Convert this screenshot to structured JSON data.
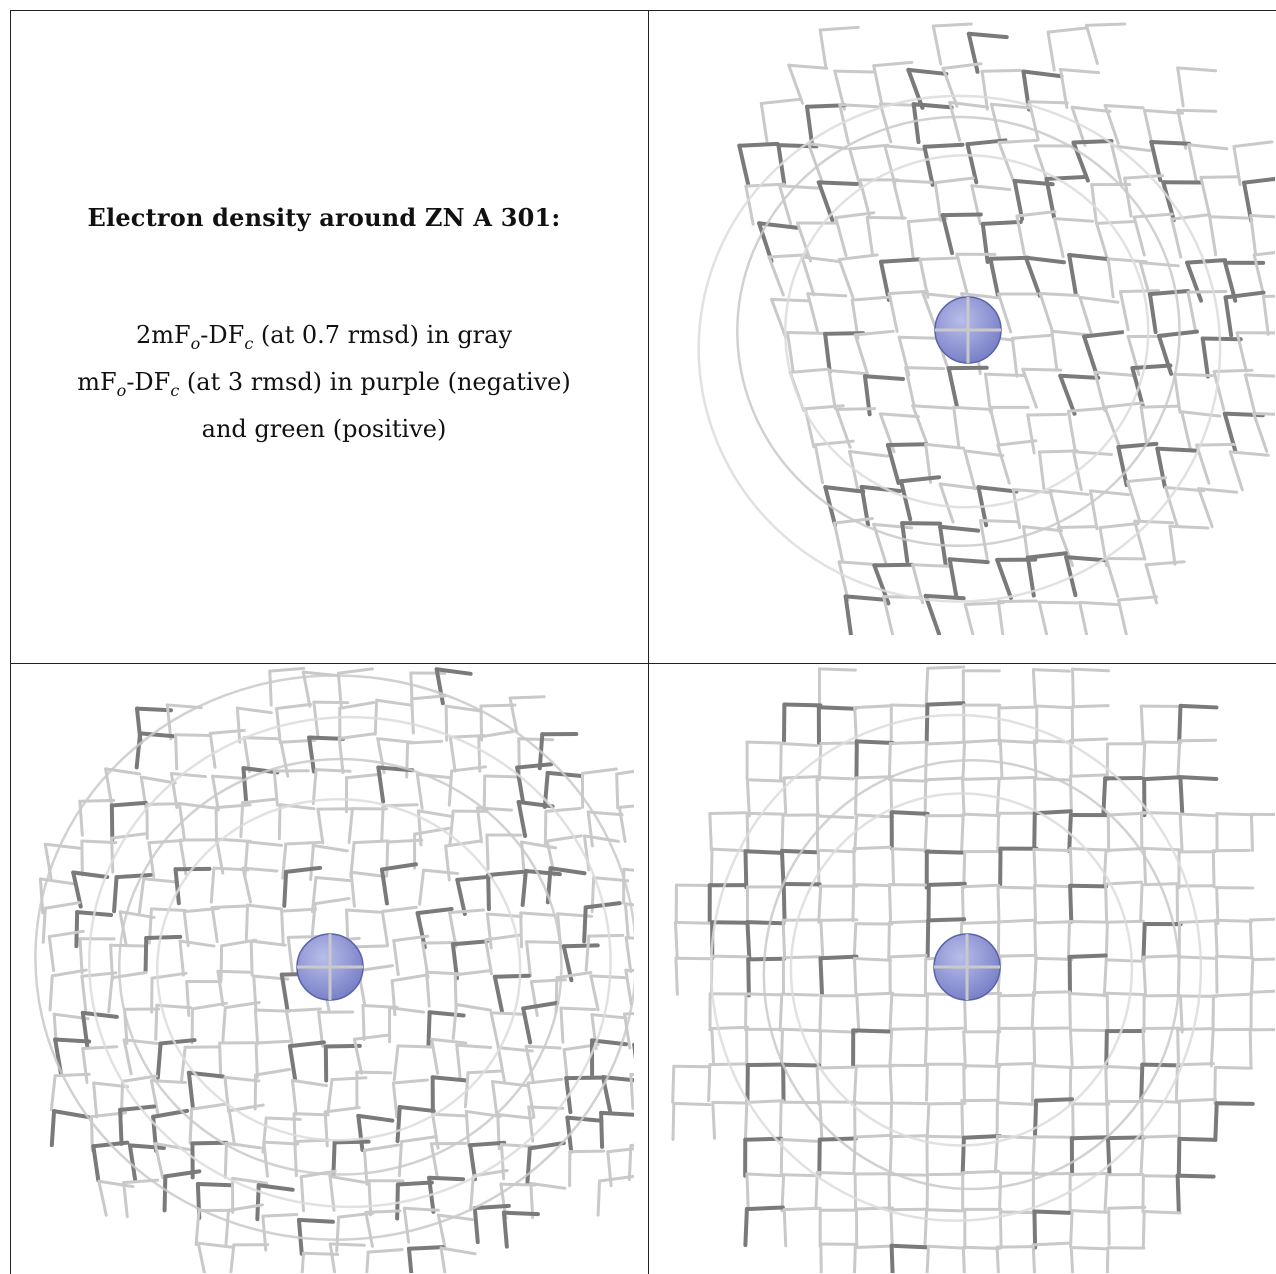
{
  "caption": {
    "title": "Electron density around ZN A 301:",
    "line1": {
      "main": "2mF",
      "sub1": "o",
      "mid": "-DF",
      "sub2": "c",
      "tail": " (at 0.7 rmsd) in gray"
    },
    "line2": {
      "main": "mF",
      "sub1": "o",
      "mid": "-DF",
      "sub2": "c",
      "tail": " (at 3 rmsd) in purple (negative)"
    },
    "line3": "and green (positive)"
  },
  "colors": {
    "mesh_light": "#c9c9c9",
    "mesh_dark": "#7a7a7a",
    "atom": "#7a82c8",
    "atom_highlight": "#b9bdea",
    "border": "#222222"
  },
  "views": [
    {
      "name": "view-top-right",
      "atom": "ZN A 301"
    },
    {
      "name": "view-bottom-left",
      "atom": "ZN A 301"
    },
    {
      "name": "view-bottom-right",
      "atom": "ZN A 301"
    }
  ]
}
